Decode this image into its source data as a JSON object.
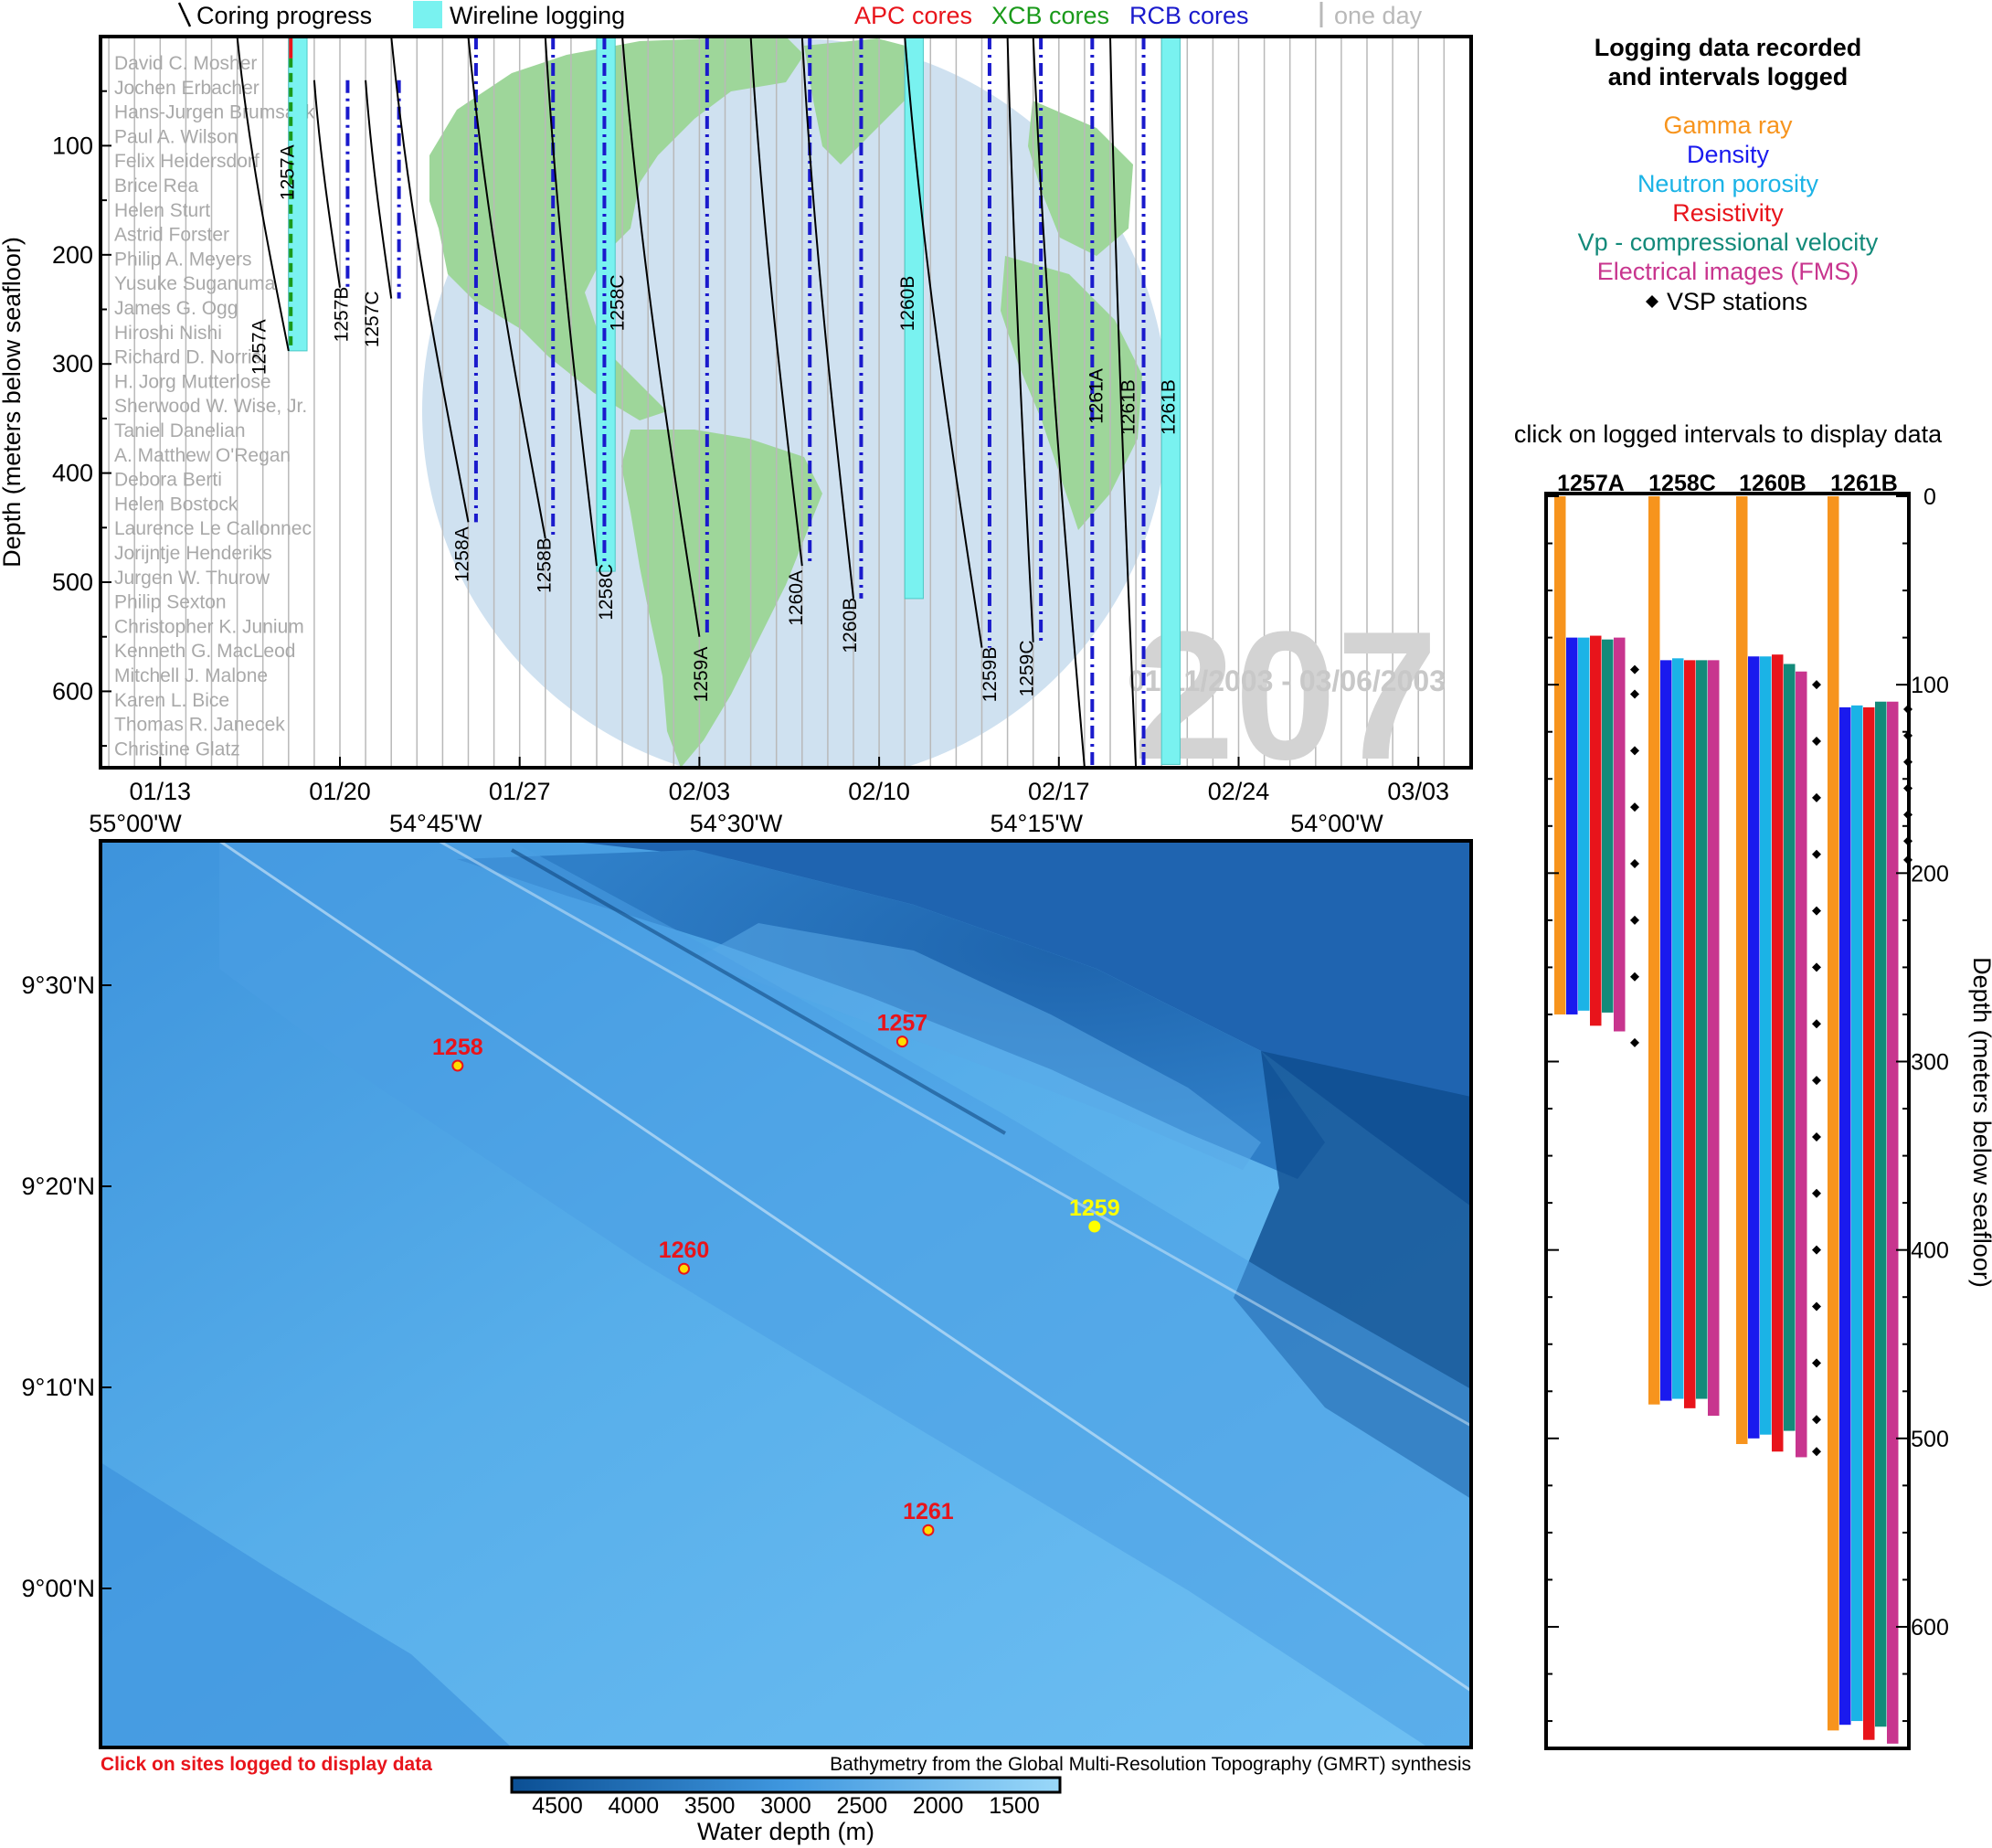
{
  "top_legend": {
    "coring": "Coring progress",
    "wireline": "Wireline logging",
    "apc": "APC cores",
    "xcb": "XCB cores",
    "rcb": "RCB cores",
    "oneday": "one day"
  },
  "colors": {
    "apc": "#e8141b",
    "xcb": "#1a9a1a",
    "rcb": "#1a1acc",
    "wireline": "#79f2f0",
    "gamma": "#f7941d",
    "density": "#1a1aee",
    "neutron": "#1bb3e6",
    "resistivity": "#e8141b",
    "vp": "#138a7a",
    "fms": "#c8358e",
    "grid": "#b9b9b9",
    "globe_ocean": "#cfe1f0",
    "globe_land": "#9ed69a",
    "bathy_deep": "#0b4f94",
    "bathy_shallow": "#8fd0f6"
  },
  "timeline": {
    "ylabel": "Depth (meters below seafloor)",
    "yticks": [
      "100",
      "200",
      "300",
      "400",
      "500",
      "600"
    ],
    "xticks": [
      "01/13",
      "01/20",
      "01/27",
      "02/03",
      "02/10",
      "02/17",
      "02/24",
      "03/03"
    ],
    "leg_number": "207",
    "leg_dates": "01/11/2003 - 03/06/2003",
    "scientists": [
      "David C. Mosher",
      "Jochen Erbacher",
      "Hans-Jurgen Brumsack",
      "Paul A. Wilson",
      "Felix Heidersdorf",
      "Brice Rea",
      "Helen Sturt",
      "Astrid Forster",
      "Philip A. Meyers",
      "Yusuke Suganuma",
      "James G. Ogg",
      "Hiroshi Nishi",
      "Richard D. Norris",
      "H. Jorg Mutterlose",
      "Sherwood W. Wise, Jr.",
      "Taniel Danelian",
      "A. Matthew O'Regan",
      "Debora Berti",
      "Helen Bostock",
      "Laurence Le Callonnec",
      "Jorijntje Henderiks",
      "Jurgen W. Thurow",
      "Philip Sexton",
      "Christopher K. Junium",
      "Kenneth G. MacLeod",
      "Mitchell J. Malone",
      "Karen L. Bice",
      "Thomas R. Janecek",
      "Christine Glatz"
    ],
    "hole_labels": [
      "1257A",
      "1257A",
      "1257B",
      "1257C",
      "1258A",
      "1258B",
      "1258C",
      "1258C",
      "1259A",
      "1260A",
      "1260B",
      "1260B",
      "1259B",
      "1259C",
      "1261A",
      "1261B",
      "1261B"
    ]
  },
  "chart_data": [
    {
      "type": "timeline",
      "xlabel": "",
      "ylabel": "Depth (meters below seafloor)",
      "ylim": [
        0,
        670
      ],
      "x_date_range": [
        "01/11/2003",
        "03/06/2003"
      ],
      "x_ticks": [
        "01/13",
        "01/20",
        "01/27",
        "02/03",
        "02/10",
        "02/17",
        "02/24",
        "03/03"
      ],
      "holes": [
        {
          "name": "1257A",
          "start": "01/16",
          "end": "01/18",
          "max_depth": 288,
          "core_types": [
            "APC",
            "XCB"
          ]
        },
        {
          "name": "1257B",
          "start": "01/19",
          "end": "01/20",
          "max_depth": 230,
          "core_types": [
            "RCB"
          ]
        },
        {
          "name": "1257C",
          "start": "01/21",
          "end": "01/22",
          "max_depth": 240,
          "core_types": [
            "RCB"
          ]
        },
        {
          "name": "1258A",
          "start": "01/22",
          "end": "01/25",
          "max_depth": 445,
          "core_types": [
            "RCB"
          ]
        },
        {
          "name": "1258B",
          "start": "01/25",
          "end": "01/28",
          "max_depth": 460,
          "core_types": [
            "RCB"
          ]
        },
        {
          "name": "1258C",
          "start": "01/28",
          "end": "01/30",
          "max_depth": 485,
          "core_types": [
            "RCB"
          ]
        },
        {
          "name": "1259A",
          "start": "01/31",
          "end": "02/03",
          "max_depth": 550,
          "core_types": [
            "RCB"
          ]
        },
        {
          "name": "1260A",
          "start": "02/05",
          "end": "02/07",
          "max_depth": 485,
          "core_types": [
            "RCB"
          ]
        },
        {
          "name": "1260B",
          "start": "02/07",
          "end": "02/09",
          "max_depth": 515,
          "core_types": [
            "RCB"
          ]
        },
        {
          "name": "1259B",
          "start": "02/11",
          "end": "02/14",
          "max_depth": 560,
          "core_types": [
            "RCB"
          ]
        },
        {
          "name": "1259C",
          "start": "02/15",
          "end": "02/16",
          "max_depth": 555,
          "core_types": [
            "RCB"
          ]
        },
        {
          "name": "1261A",
          "start": "02/16",
          "end": "02/18",
          "max_depth": 670,
          "core_types": [
            "RCB"
          ]
        },
        {
          "name": "1261B",
          "start": "02/19",
          "end": "02/20",
          "max_depth": 670,
          "core_types": [
            "RCB"
          ]
        }
      ],
      "wireline": [
        {
          "hole": "1257A",
          "start": "01/18",
          "end": "01/19",
          "top": 0,
          "bottom": 288
        },
        {
          "hole": "1258C",
          "start": "01/30",
          "end": "01/31",
          "top": 0,
          "bottom": 490
        },
        {
          "hole": "1260B",
          "start": "02/11",
          "end": "02/12",
          "top": 0,
          "bottom": 515
        },
        {
          "hole": "1261B",
          "start": "02/21",
          "end": "02/22",
          "top": 0,
          "bottom": 667
        }
      ]
    },
    {
      "type": "bar",
      "title": "Logging data recorded and intervals logged",
      "subtitle": "click on logged intervals to display data",
      "ylabel": "Depth (meters below seafloor)",
      "ylim": [
        0,
        665
      ],
      "yticks": [
        "0",
        "100",
        "200",
        "300",
        "400",
        "500",
        "600"
      ],
      "categories": [
        "1257A",
        "1258C",
        "1260B",
        "1261B"
      ],
      "legend": [
        "Gamma ray",
        "Density",
        "Neutron porosity",
        "Resistivity",
        "Vp - compressional velocity",
        "Electrical images (FMS)",
        "VSP stations"
      ],
      "series": [
        {
          "name": "Gamma ray",
          "intervals": [
            [
              0,
              275
            ],
            [
              0,
              482
            ],
            [
              0,
              503
            ],
            [
              0,
              655
            ]
          ]
        },
        {
          "name": "Density",
          "intervals": [
            [
              75,
              275
            ],
            [
              87,
              480
            ],
            [
              85,
              500
            ],
            [
              112,
              652
            ]
          ]
        },
        {
          "name": "Neutron porosity",
          "intervals": [
            [
              75,
              273
            ],
            [
              86,
              479
            ],
            [
              85,
              498
            ],
            [
              111,
              650
            ]
          ]
        },
        {
          "name": "Resistivity",
          "intervals": [
            [
              74,
              281
            ],
            [
              87,
              484
            ],
            [
              84,
              507
            ],
            [
              112,
              660
            ]
          ]
        },
        {
          "name": "Vp - compressional velocity",
          "intervals": [
            [
              76,
              274
            ],
            [
              87,
              479
            ],
            [
              89,
              496
            ],
            [
              109,
              653
            ]
          ]
        },
        {
          "name": "Electrical images (FMS)",
          "intervals": [
            [
              75,
              284
            ],
            [
              87,
              488
            ],
            [
              93,
              510
            ],
            [
              109,
              662
            ]
          ]
        }
      ],
      "vsp_stations": [
        [
          92,
          105,
          135,
          165,
          195,
          225,
          255,
          290
        ],
        [],
        [
          100,
          130,
          160,
          190,
          220,
          250,
          280,
          310,
          340,
          370,
          400,
          430,
          460,
          490,
          507
        ],
        [
          113,
          127,
          141,
          155,
          169,
          183,
          193
        ]
      ]
    },
    {
      "type": "map",
      "title": "",
      "x_ticks": [
        "55°00'W",
        "54°45'W",
        "54°30'W",
        "54°15'W",
        "54°00'W"
      ],
      "y_ticks": [
        "9°30'N",
        "9°20'N",
        "9°10'N",
        "9°00'N"
      ],
      "sites": [
        {
          "name": "1257",
          "lon": "54°21.7'W",
          "lat": "9°27.2'N",
          "logged": true
        },
        {
          "name": "1258",
          "lon": "54°43.9'W",
          "lat": "9°26.0'N",
          "logged": true
        },
        {
          "name": "1259",
          "lon": "54°12.1'W",
          "lat": "9°18.0'N",
          "logged": false
        },
        {
          "name": "1260",
          "lon": "54°32.6'W",
          "lat": "9°15.9'N",
          "logged": true
        },
        {
          "name": "1261",
          "lon": "54°20.4'W",
          "lat": "9°02.9'N",
          "logged": true
        }
      ],
      "colorbar": {
        "label": "Water depth (m)",
        "ticks": [
          "4500",
          "4000",
          "3500",
          "3000",
          "2500",
          "2000",
          "1500"
        ]
      }
    }
  ],
  "map": {
    "click_text": "Click on sites logged to display data",
    "source_text": "Bathymetry from the Global Multi-Resolution Topography (GMRT) synthesis",
    "colorbar_label": "Water depth (m)"
  },
  "logging": {
    "title_line1": "Logging data recorded",
    "title_line2": "and intervals logged",
    "legend": {
      "gamma": "Gamma ray",
      "density": "Density",
      "neutron": "Neutron porosity",
      "resistivity": "Resistivity",
      "vp": "Vp - compressional velocity",
      "fms": "Electrical images (FMS)",
      "vsp": "VSP stations"
    },
    "instruction": "click on logged intervals to display data",
    "ylabel": "Depth (meters below seafloor)"
  }
}
